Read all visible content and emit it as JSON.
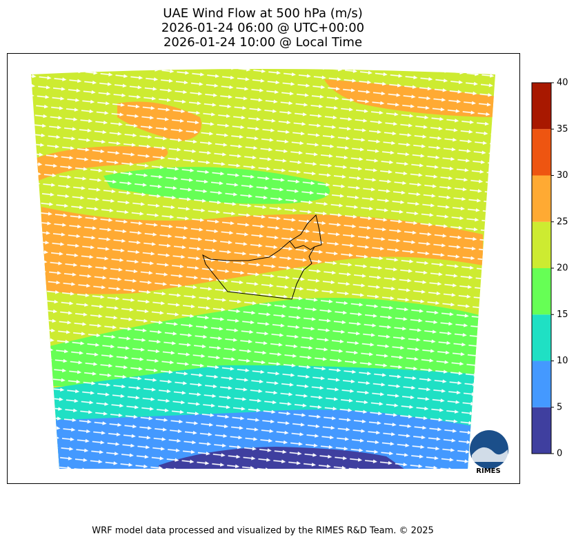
{
  "title": [
    "UAE Wind Flow at 500 hPa (m/s)",
    "2026-01-24 06:00 @ UTC+00:00",
    "2026-01-24 10:00 @ Local Time"
  ],
  "colorbar": {
    "ticks": [
      0,
      5,
      10,
      15,
      20,
      25,
      30,
      35,
      40
    ],
    "colors": [
      "#3f3f9f",
      "#4499ff",
      "#1fe0c4",
      "#66ff55",
      "#cdeb31",
      "#ffaa33",
      "#ee5511",
      "#a81800"
    ]
  },
  "logo": "RIMES",
  "footer": "WRF model data processed and visualized by the RIMES R&D Team. © 2025"
}
